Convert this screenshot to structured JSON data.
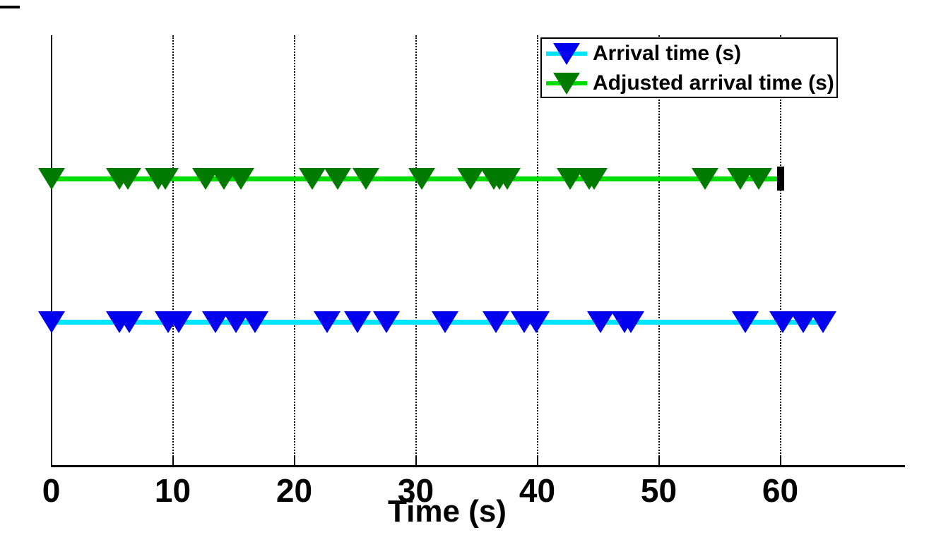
{
  "chart_data": {
    "type": "scatter",
    "title": "",
    "xlabel": "Time (s)",
    "x_ticks": [
      0,
      10,
      20,
      30,
      40,
      50,
      60
    ],
    "xlim": [
      0,
      70
    ],
    "grid": "vertical dotted gridlines at each labeled tick",
    "legend_position": "top-right inside axes",
    "marker": "triangle-down",
    "series": [
      {
        "name": "Arrival time (s)",
        "line_color": "#00E5FF",
        "marker_color": "#0000EE",
        "row": "lower",
        "line_span": [
          0,
          63.5
        ],
        "x": [
          0,
          5.6,
          6.4,
          9.6,
          10.5,
          13.5,
          15.2,
          16.8,
          22.7,
          25.2,
          27.6,
          32.4,
          36.6,
          38.9,
          39.9,
          45.2,
          47.2,
          47.7,
          57.1,
          60.2,
          61.9,
          63.5
        ]
      },
      {
        "name": "Adjusted arrival time (s)",
        "line_color": "#00DD00",
        "marker_color": "#007B00",
        "row": "upper",
        "line_span": [
          0,
          60
        ],
        "x": [
          0,
          5.6,
          6.3,
          8.8,
          9.4,
          12.7,
          14.2,
          15.6,
          21.5,
          23.6,
          25.9,
          30.5,
          34.5,
          36.4,
          36.9,
          37.5,
          42.7,
          44.3,
          44.7,
          53.8,
          56.7,
          58.2
        ],
        "end_marker": {
          "shape": "black-vertical-bar",
          "x": 60,
          "color": "#000000"
        }
      }
    ]
  }
}
